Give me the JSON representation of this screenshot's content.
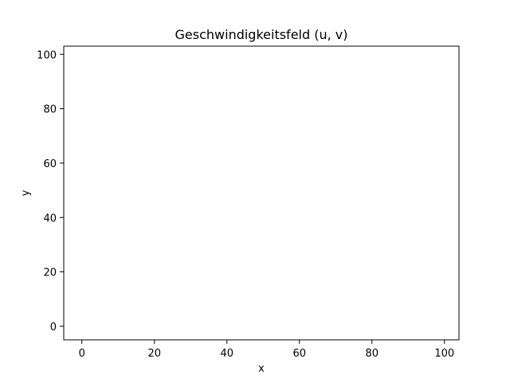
{
  "chart_data": {
    "type": "scatter",
    "title": "Geschwindigkeitsfeld (u, v)",
    "xlabel": "x",
    "ylabel": "y",
    "xlim": [
      -5,
      104
    ],
    "ylim": [
      -5,
      103
    ],
    "xticks": [
      0,
      20,
      40,
      60,
      80,
      100
    ],
    "yticks": [
      0,
      20,
      40,
      60,
      80,
      100
    ],
    "xtick_labels": [
      "0",
      "20",
      "40",
      "60",
      "80",
      "100"
    ],
    "ytick_labels": [
      "0",
      "20",
      "40",
      "60",
      "80",
      "100"
    ],
    "grid": false,
    "series": []
  }
}
